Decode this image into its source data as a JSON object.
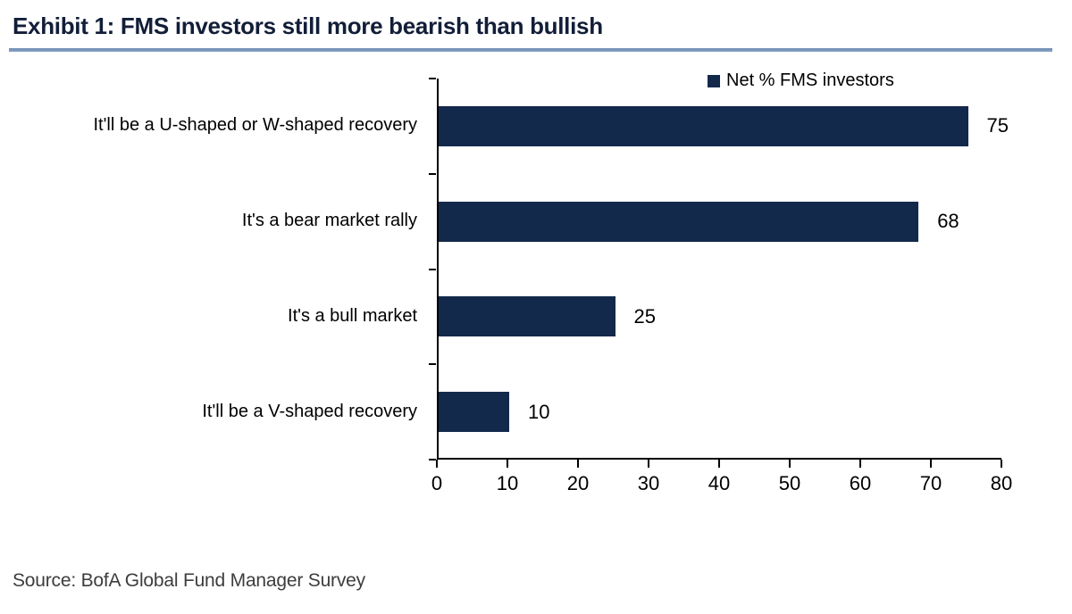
{
  "header": {
    "title": "Exhibit 1: FMS investors still more bearish than bullish"
  },
  "legend": {
    "label": "Net % FMS investors"
  },
  "footer": {
    "source": "Source: BofA Global Fund Manager Survey"
  },
  "colors": {
    "bar": "#13294b",
    "title_text": "#121e38",
    "title_rule": "#7290b6",
    "axis": "#000000",
    "source_text": "#3d3d3d"
  },
  "chart_data": {
    "type": "bar",
    "orientation": "horizontal",
    "title": "Exhibit 1: FMS investors still more bearish than bullish",
    "categories": [
      "It'll be a U-shaped or W-shaped recovery",
      "It's a bear market rally",
      "It's a bull market",
      "It'll be a V-shaped recovery"
    ],
    "values": [
      75,
      68,
      25,
      10
    ],
    "data_labels": [
      "75",
      "68",
      "25",
      "10"
    ],
    "xlabel": "",
    "ylabel": "",
    "xlim": [
      0,
      80
    ],
    "xticks": [
      0,
      10,
      20,
      30,
      40,
      50,
      60,
      70,
      80
    ],
    "grid": false,
    "legend": [
      "Net % FMS investors"
    ],
    "legend_position": "top-right",
    "source": "Source: BofA Global Fund Manager Survey"
  }
}
